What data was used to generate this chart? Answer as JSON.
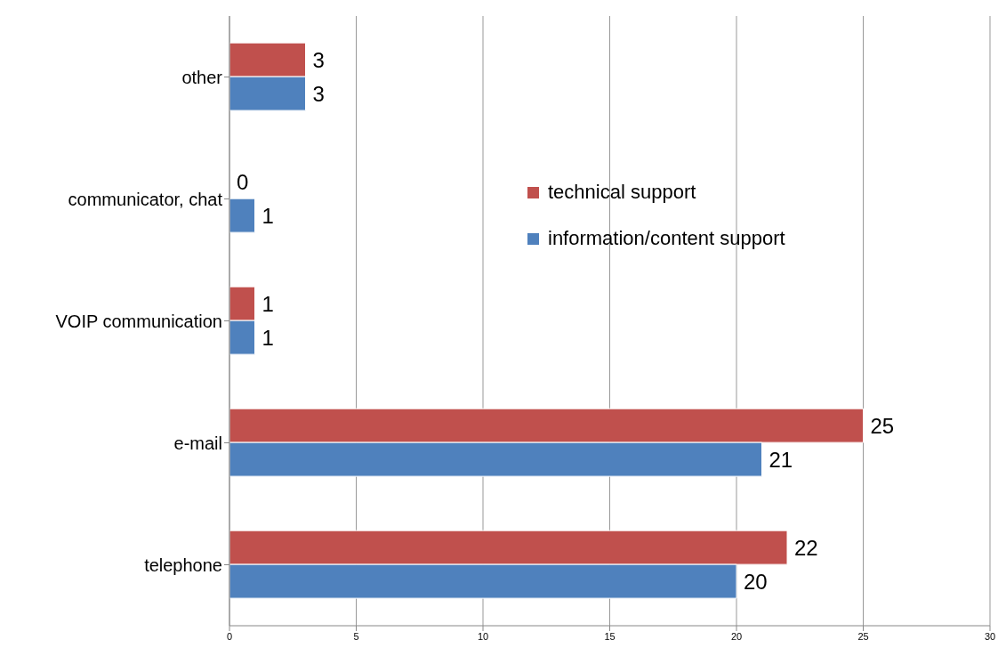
{
  "chart_data": {
    "type": "bar",
    "orientation": "horizontal",
    "categories": [
      "other",
      "communicator, chat",
      "VOIP communication",
      "e-mail",
      "telephone"
    ],
    "series": [
      {
        "name": "technical support",
        "color": "#c0504d",
        "values": [
          3,
          0,
          1,
          25,
          22
        ]
      },
      {
        "name": "information/content support",
        "color": "#4f81bd",
        "values": [
          3,
          1,
          1,
          21,
          20
        ]
      }
    ],
    "xlim": [
      0,
      30
    ],
    "xticks": [
      0,
      5,
      10,
      15,
      20,
      25,
      30
    ],
    "grid": "x",
    "legend": "right",
    "data_labels": true
  }
}
